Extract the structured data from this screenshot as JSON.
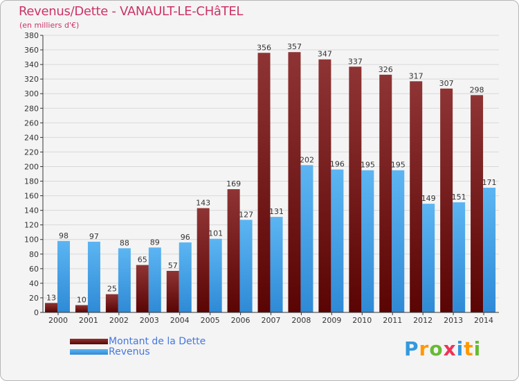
{
  "chart_data": {
    "type": "bar",
    "title": "Revenus/Dette - VANAULT-LE-CHâTEL",
    "subtitle": "(en milliers d'€)",
    "categories": [
      "2000",
      "2001",
      "2002",
      "2003",
      "2004",
      "2005",
      "2006",
      "2007",
      "2008",
      "2009",
      "2010",
      "2011",
      "2012",
      "2013",
      "2014"
    ],
    "series": [
      {
        "name": "Montant de la Dette",
        "values": [
          13,
          10,
          25,
          65,
          57,
          143,
          169,
          356,
          357,
          347,
          337,
          326,
          317,
          307,
          298
        ],
        "color": "#7a1a1a"
      },
      {
        "name": "Revenus",
        "values": [
          98,
          97,
          88,
          89,
          96,
          101,
          127,
          131,
          202,
          196,
          195,
          195,
          149,
          151,
          171
        ],
        "color": "#4aa3e6"
      }
    ],
    "ylim": [
      0,
      380
    ],
    "yticks": [
      0,
      20,
      40,
      60,
      80,
      100,
      120,
      140,
      160,
      180,
      200,
      220,
      240,
      260,
      280,
      300,
      320,
      340,
      360,
      380
    ],
    "grid": true,
    "legend": "bottom-left"
  },
  "legend": {
    "dette_label": "Montant de la Dette",
    "revenus_label": "Revenus"
  },
  "logo": {
    "letters": [
      "P",
      "r",
      "o",
      "x",
      "i",
      "t",
      "i"
    ],
    "colors": [
      "#3399dd",
      "#ff9900",
      "#66bb33",
      "#ee3355",
      "#3399dd",
      "#ff9900",
      "#66bb33"
    ]
  }
}
